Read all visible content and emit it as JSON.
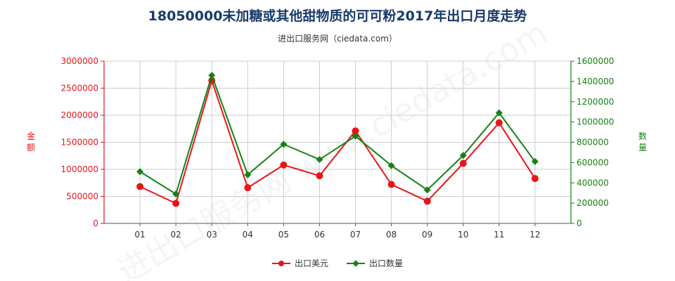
{
  "title": "18050000未加糖或其他甜物质的可可粉2017年出口月度走势",
  "subtitle": "进出口服务网（ciedata.com）",
  "watermark": "进出口服务网 www.ciedata.com",
  "colors": {
    "usd": "#e8141a",
    "qty": "#148214",
    "grid": "#cccccc",
    "title": "#1a3a6b"
  },
  "chart_data": {
    "type": "line",
    "title": "18050000未加糖或其他甜物质的可可粉2017年出口月度走势",
    "categories": [
      "01",
      "02",
      "03",
      "04",
      "05",
      "06",
      "07",
      "08",
      "09",
      "10",
      "11",
      "12"
    ],
    "y_left": {
      "label": "金额",
      "ylim": [
        0,
        3000000
      ],
      "ticks": [
        "0",
        "500000",
        "1000000",
        "1500000",
        "2000000",
        "2500000",
        "3000000"
      ]
    },
    "y_right": {
      "label": "数量",
      "ylim": [
        0,
        1600000
      ],
      "ticks": [
        "0",
        "200000",
        "400000",
        "600000",
        "800000",
        "1000000",
        "1200000",
        "1400000",
        "1600000"
      ]
    },
    "series": [
      {
        "name": "出口美元",
        "axis": "left",
        "values": [
          680000,
          370000,
          2640000,
          660000,
          1080000,
          880000,
          1710000,
          720000,
          410000,
          1110000,
          1860000,
          830000
        ]
      },
      {
        "name": "出口数量",
        "axis": "right",
        "values": [
          510000,
          290000,
          1460000,
          480000,
          780000,
          630000,
          860000,
          570000,
          330000,
          670000,
          1090000,
          610000
        ]
      }
    ],
    "grid": true,
    "legend": "bottom"
  }
}
